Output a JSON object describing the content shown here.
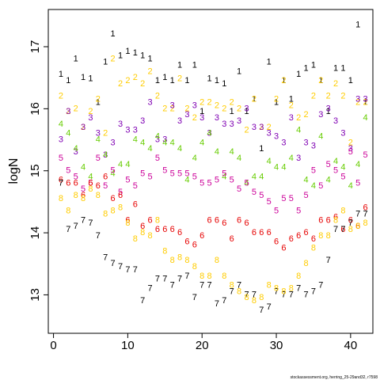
{
  "chart_data": {
    "type": "scatter",
    "ylabel": "logN",
    "xlabel": "",
    "xlim": [
      -0.7,
      43.0
    ],
    "ylim": [
      12.38,
      17.6
    ],
    "xticks": [
      0,
      10,
      20,
      30,
      40
    ],
    "yticks": [
      13,
      14,
      15,
      16,
      17
    ],
    "grid": false,
    "footnote": "stockassessment.org, herring_25-29and32, r7598",
    "x": [
      1,
      2,
      3,
      4,
      5,
      6,
      7,
      8,
      9,
      10,
      11,
      12,
      13,
      14,
      15,
      16,
      17,
      18,
      19,
      20,
      21,
      22,
      23,
      24,
      25,
      26,
      27,
      28,
      29,
      30,
      31,
      32,
      33,
      34,
      35,
      36,
      37,
      38,
      39,
      40,
      41,
      42
    ],
    "series": [
      {
        "name": "1",
        "color": "#000000",
        "values": [
          16.55,
          16.45,
          16.8,
          16.5,
          16.48,
          16.1,
          16.75,
          17.2,
          16.85,
          16.92,
          16.9,
          16.85,
          16.8,
          16.45,
          16.5,
          16.45,
          16.7,
          16.45,
          16.7,
          15.95,
          16.48,
          16.45,
          16.4,
          15.95,
          16.6,
          15.95,
          16.15,
          15.35,
          16.75,
          16.1,
          16.45,
          16.15,
          16.55,
          16.65,
          16.7,
          16.45,
          15.95,
          16.65,
          16.65,
          16.45,
          17.35,
          16.1
        ]
      },
      {
        "name": "2",
        "color": "#ffcc00",
        "values": [
          16.2,
          15.95,
          16.0,
          15.7,
          15.95,
          16.15,
          15.6,
          16.8,
          16.4,
          16.45,
          16.5,
          16.4,
          16.6,
          16.2,
          16.0,
          16.0,
          16.48,
          16.0,
          15.85,
          16.1,
          16.1,
          16.05,
          16.0,
          16.1,
          16.0,
          15.65,
          16.15,
          15.7,
          15.7,
          16.15,
          16.45,
          16.05,
          15.85,
          15.9,
          16.2,
          16.45,
          16.2,
          16.4,
          16.2,
          15.45,
          16.1,
          16.1
        ]
      },
      {
        "name": "3",
        "color": "#7f00b3",
        "values": [
          15.5,
          15.95,
          15.3,
          15.7,
          15.85,
          15.6,
          15.25,
          15.45,
          15.75,
          15.65,
          15.65,
          15.8,
          16.1,
          15.5,
          15.5,
          16.05,
          15.8,
          15.9,
          16.05,
          15.85,
          15.6,
          15.85,
          15.75,
          15.75,
          15.8,
          16.0,
          15.7,
          15.7,
          15.6,
          15.55,
          15.45,
          15.85,
          15.2,
          15.45,
          15.4,
          15.9,
          16.0,
          15.8,
          15.6,
          15.35,
          16.15,
          16.15
        ]
      },
      {
        "name": "4",
        "color": "#66cc00",
        "values": [
          15.75,
          15.6,
          15.35,
          15.05,
          14.9,
          15.5,
          15.25,
          14.95,
          15.1,
          15.1,
          15.5,
          15.45,
          15.35,
          15.55,
          15.45,
          15.45,
          15.35,
          14.85,
          15.2,
          15.45,
          15.6,
          15.3,
          14.9,
          15.3,
          15.2,
          14.8,
          14.9,
          14.9,
          15.15,
          15.05,
          15.05,
          15.2,
          15.65,
          14.85,
          14.75,
          15.55,
          14.85,
          15.15,
          15.05,
          14.75,
          15.1,
          15.85
        ]
      },
      {
        "name": "5",
        "color": "#cc0099",
        "values": [
          15.2,
          15.0,
          14.9,
          14.7,
          14.8,
          15.2,
          14.75,
          15.0,
          14.65,
          14.85,
          14.75,
          14.95,
          14.9,
          15.2,
          15.0,
          14.95,
          14.95,
          14.95,
          14.9,
          14.8,
          14.8,
          14.85,
          14.95,
          14.85,
          14.7,
          14.8,
          14.65,
          14.6,
          14.5,
          14.35,
          14.55,
          14.55,
          14.35,
          14.6,
          15.0,
          14.75,
          15.1,
          15.0,
          14.9,
          15.3,
          14.8,
          15.25
        ]
      },
      {
        "name": "6",
        "color": "#e60000",
        "values": [
          14.85,
          14.8,
          14.8,
          14.6,
          14.8,
          14.75,
          14.9,
          14.55,
          14.6,
          14.2,
          14.45,
          14.1,
          14.2,
          14.05,
          14.05,
          14.05,
          14.0,
          13.85,
          13.8,
          13.95,
          14.2,
          14.2,
          14.15,
          13.9,
          14.2,
          14.15,
          14.0,
          14.0,
          14.0,
          13.85,
          13.75,
          13.9,
          13.95,
          14.0,
          13.9,
          14.2,
          14.2,
          14.25,
          14.05,
          14.2,
          14.1,
          14.4
        ]
      },
      {
        "name": "7",
        "color": "#000000",
        "values": [
          14.8,
          14.05,
          14.1,
          14.2,
          14.15,
          13.95,
          13.6,
          13.5,
          13.45,
          13.4,
          13.4,
          12.9,
          13.1,
          13.25,
          13.25,
          13.15,
          13.25,
          13.3,
          12.95,
          13.15,
          13.15,
          12.85,
          12.9,
          13.05,
          13.15,
          13.0,
          13.0,
          12.75,
          12.8,
          13.05,
          13.0,
          13.0,
          13.1,
          13.0,
          13.05,
          13.15,
          13.55,
          14.05,
          14.05,
          14.15,
          14.3,
          14.3
        ]
      },
      {
        "name": "8",
        "color": "#ffcc00",
        "values": [
          14.55,
          14.35,
          14.6,
          14.55,
          14.7,
          14.6,
          14.3,
          14.35,
          14.4,
          14.15,
          13.9,
          14.0,
          13.95,
          14.2,
          13.7,
          13.55,
          13.6,
          13.55,
          13.45,
          13.3,
          13.3,
          13.55,
          13.3,
          13.15,
          13.05,
          12.95,
          12.9,
          12.95,
          13.15,
          13.1,
          13.05,
          13.1,
          13.3,
          13.5,
          13.75,
          13.95,
          13.95,
          14.2,
          14.35,
          14.05,
          14.1,
          14.15
        ]
      }
    ]
  }
}
